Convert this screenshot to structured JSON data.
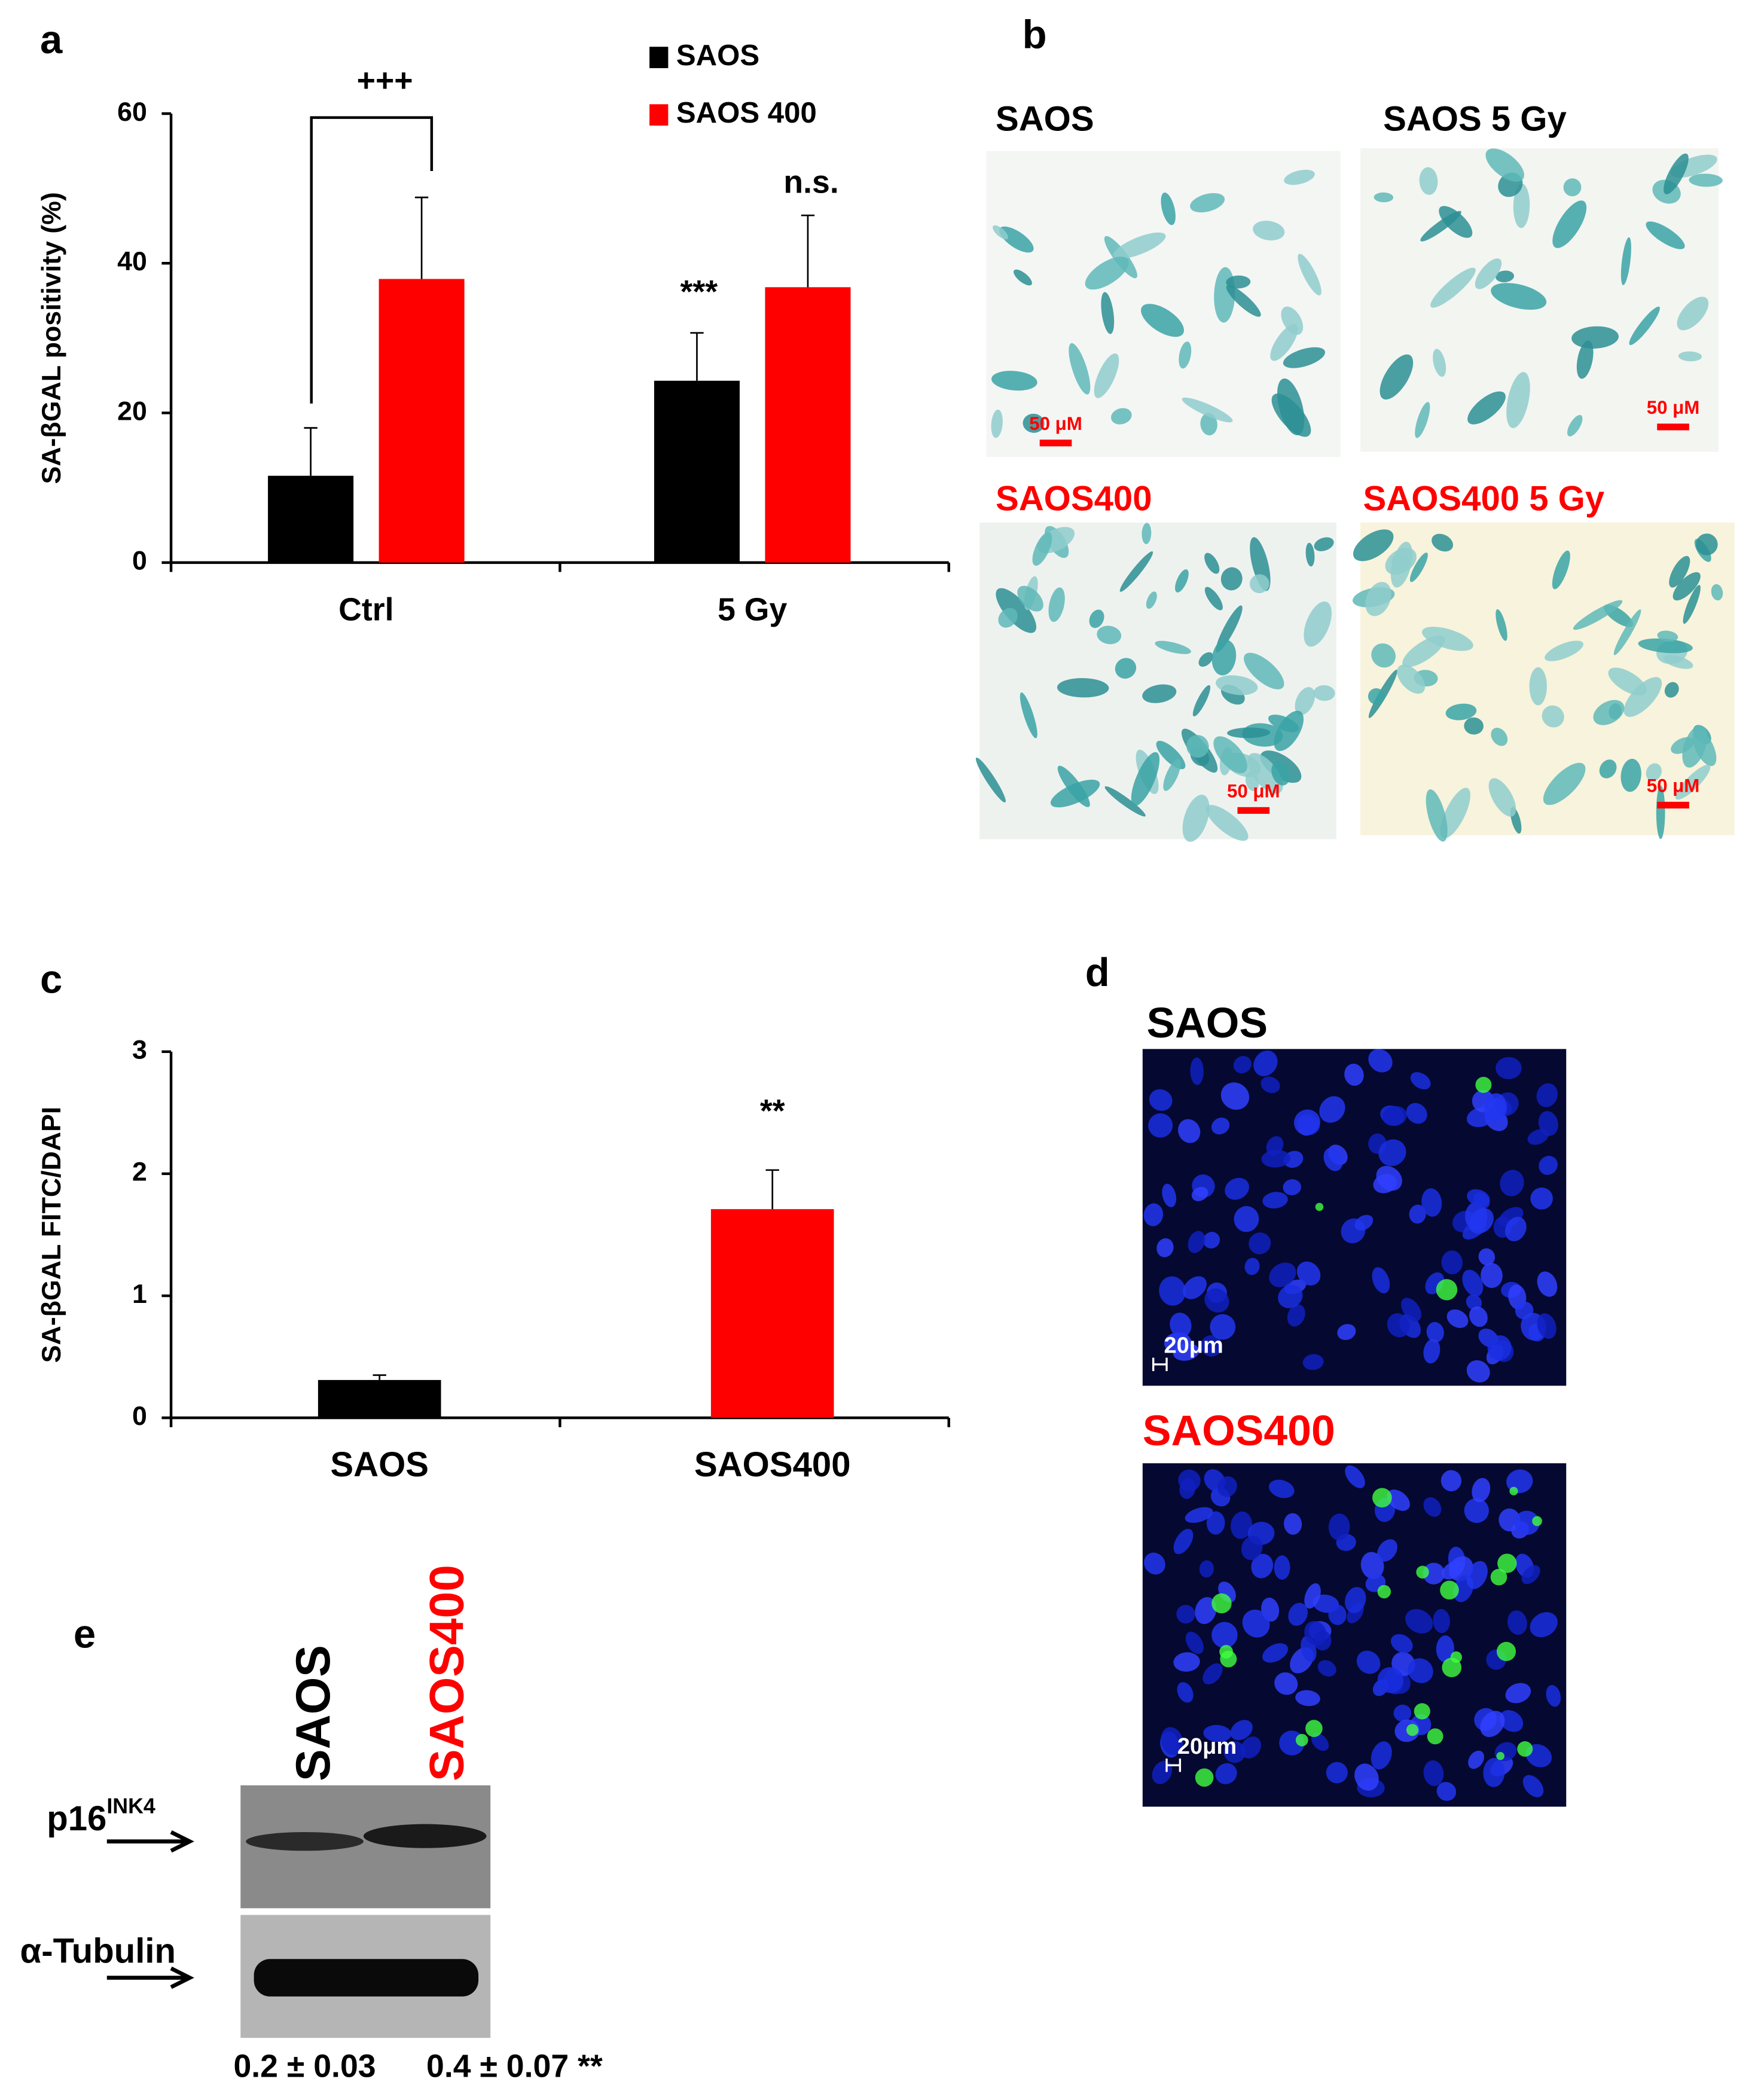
{
  "chart_data": [
    {
      "type": "bar",
      "panel": "a",
      "categories": [
        "Ctrl",
        "5 Gy"
      ],
      "series": [
        {
          "name": "SAOS",
          "color": "#000000",
          "values": [
            11.6,
            24.3
          ],
          "errors": [
            6.4,
            6.4
          ]
        },
        {
          "name": "SAOS 400",
          "color": "#ff0000",
          "values": [
            37.9,
            36.8
          ],
          "errors": [
            10.9,
            9.6
          ]
        }
      ],
      "ylabel": "SA-βGAL positivity (%)",
      "ylim": [
        0,
        60
      ],
      "yticks": [
        0,
        20,
        40,
        60
      ],
      "annotations": [
        "+++",
        "***",
        "n.s."
      ]
    },
    {
      "type": "bar",
      "panel": "c",
      "categories": [
        "SAOS",
        "SAOS400"
      ],
      "values": [
        0.31,
        1.71
      ],
      "errors": [
        0.04,
        0.32
      ],
      "colors": [
        "#000000",
        "#ff0000"
      ],
      "ylabel": "SA-βGAL FITC/DAPI",
      "ylim": [
        0,
        3
      ],
      "yticks": [
        0,
        1,
        2,
        3
      ],
      "annotations": [
        "**"
      ]
    }
  ],
  "panel_b": {
    "label": "b",
    "images": [
      {
        "label": "SAOS",
        "scale_bar": "50 μM"
      },
      {
        "label": "SAOS 5 Gy",
        "scale_bar": "50 μM"
      },
      {
        "label": "SAOS400",
        "scale_bar": "50 μM"
      },
      {
        "label": "SAOS400 5 Gy",
        "scale_bar": "50 μM"
      }
    ]
  },
  "panel_d": {
    "label": "d",
    "images": [
      {
        "label": "SAOS",
        "scale_bar": "20μm"
      },
      {
        "label": "SAOS400",
        "scale_bar": "20μm"
      }
    ]
  },
  "panel_e": {
    "label": "e",
    "lanes": [
      "SAOS",
      "SAOS400"
    ],
    "rows": [
      {
        "label": "p16",
        "superscript": "INK4"
      },
      {
        "label": "α-Tubulin"
      }
    ],
    "quantification": [
      "0.2 ± 0.03",
      "0.4 ± 0.07 **"
    ]
  }
}
